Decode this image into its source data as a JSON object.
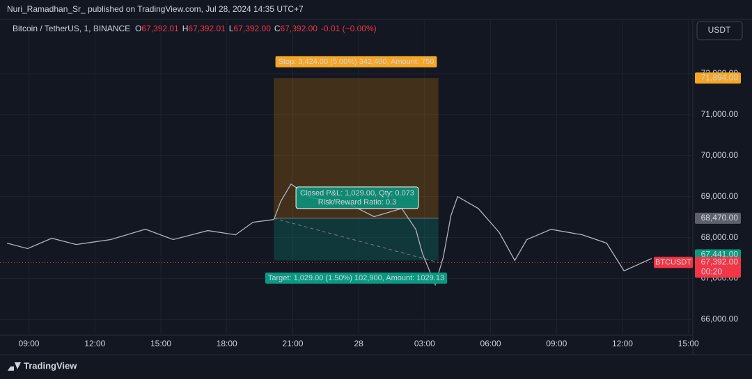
{
  "header": {
    "publisher": "Nuri_Ramadhan_Sr_ published on TradingView.com, Jul 28, 2024 14:35 UTC+7",
    "symbol": "Bitcoin / TetherUS, 1, BINANCE",
    "ohlc": [
      {
        "key": "O",
        "value": "67,392.01"
      },
      {
        "key": "H",
        "value": "67,392.01"
      },
      {
        "key": "L",
        "value": "67,392.00"
      },
      {
        "key": "C",
        "value": "67,392.00"
      }
    ],
    "change": "-0.01 (−0.00%)",
    "currency": "USDT"
  },
  "footer": {
    "brand": "TradingView"
  },
  "chart_data": {
    "type": "line",
    "series": [
      {
        "name": "BTCUSDT",
        "color": "#b2b5be",
        "x": [
          8.0,
          8.94,
          10.04,
          11.15,
          12.72,
          14.3,
          15.56,
          17.14,
          18.4,
          19.19,
          20.14,
          20.45,
          20.92,
          21.87,
          23.45,
          24.7,
          25.96,
          26.6,
          26.9,
          27.48,
          27.85,
          28.2,
          28.5,
          29.44,
          30.4,
          31.1,
          31.65,
          32.75,
          34.17,
          35.28,
          36.07,
          37.33
        ],
        "values": [
          67864,
          67730,
          67983,
          67830,
          67950,
          68203,
          67950,
          68170,
          68068,
          68373,
          68440,
          68880,
          69305,
          68966,
          68850,
          68510,
          68710,
          68200,
          67610,
          66850,
          67525,
          68540,
          69000,
          68710,
          68120,
          67440,
          67950,
          68200,
          68068,
          67864,
          67186,
          67490
        ]
      }
    ],
    "xlim": [
      8,
      39.2
    ],
    "ylim": [
      65650,
      73290
    ],
    "xticks": [
      {
        "value": 9,
        "label": "09:00"
      },
      {
        "value": 12,
        "label": "12:00"
      },
      {
        "value": 15,
        "label": "15:00"
      },
      {
        "value": 18,
        "label": "18:00"
      },
      {
        "value": 21,
        "label": "21:00"
      },
      {
        "value": 24,
        "label": "28"
      },
      {
        "value": 27,
        "label": "03:00"
      },
      {
        "value": 30,
        "label": "06:00"
      },
      {
        "value": 33,
        "label": "09:00"
      },
      {
        "value": 36,
        "label": "12:00"
      },
      {
        "value": 39,
        "label": "15:00"
      }
    ],
    "yticks": [
      {
        "value": 66000,
        "label": "66,000.00"
      },
      {
        "value": 67000,
        "label": "67,000.00"
      },
      {
        "value": 68000,
        "label": "68,000.00"
      },
      {
        "value": 69000,
        "label": "69,000.00"
      },
      {
        "value": 70000,
        "label": "70,000.00"
      },
      {
        "value": 71000,
        "label": "71,000.00"
      },
      {
        "value": 72000,
        "label": "72,000.00"
      }
    ],
    "grid": true,
    "position": {
      "start": 20.14,
      "end": 27.63,
      "stop": {
        "value": 71894,
        "label": "71,894.00"
      },
      "entry": {
        "value": 68470,
        "label": "68,470.00"
      },
      "target": {
        "value": 67441,
        "label": "67,441.00"
      },
      "stop_text": "Stop: 3,424.00 (5.00%) 342,400, Amount: 750",
      "target_text": "Target: 1,029.00 (1.50%) 102,900, Amount: 1029.13",
      "pnl_text": "Closed P&L: 1,029.00, Qty: 0.073",
      "ratio_text": "Risk/Reward Ratio: 0.3"
    },
    "last_price": {
      "value": 67392,
      "label": "67,392.00"
    },
    "last_name": "BTCUSDT",
    "countdown": "00:20"
  }
}
